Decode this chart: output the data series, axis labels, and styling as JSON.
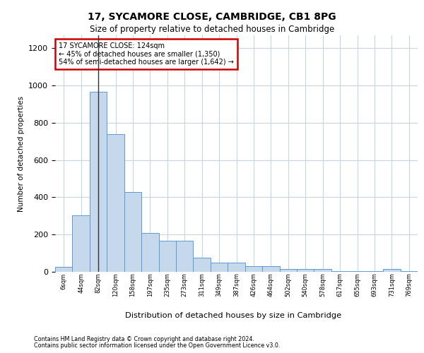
{
  "title_line1": "17, SYCAMORE CLOSE, CAMBRIDGE, CB1 8PG",
  "title_line2": "Size of property relative to detached houses in Cambridge",
  "xlabel": "Distribution of detached houses by size in Cambridge",
  "ylabel": "Number of detached properties",
  "footnote1": "Contains HM Land Registry data © Crown copyright and database right 2024.",
  "footnote2": "Contains public sector information licensed under the Open Government Licence v3.0.",
  "annotation_line1": "17 SYCAMORE CLOSE: 124sqm",
  "annotation_line2": "← 45% of detached houses are smaller (1,350)",
  "annotation_line3": "54% of semi-detached houses are larger (1,642) →",
  "bar_color": "#c5d8ec",
  "bar_edge_color": "#5b9bd5",
  "highlight_line_color": "#333333",
  "annotation_box_edgecolor": "#cc0000",
  "background_color": "#ffffff",
  "grid_color": "#c8d4e0",
  "categories": [
    "6sqm",
    "44sqm",
    "82sqm",
    "120sqm",
    "158sqm",
    "197sqm",
    "235sqm",
    "273sqm",
    "311sqm",
    "349sqm",
    "387sqm",
    "426sqm",
    "464sqm",
    "502sqm",
    "540sqm",
    "578sqm",
    "617sqm",
    "655sqm",
    "693sqm",
    "731sqm",
    "769sqm"
  ],
  "values": [
    25,
    305,
    965,
    740,
    430,
    210,
    165,
    165,
    75,
    48,
    48,
    30,
    30,
    15,
    15,
    15,
    2,
    2,
    2,
    15,
    2
  ],
  "property_bin_index": 2,
  "ylim": [
    0,
    1270
  ],
  "yticks": [
    0,
    200,
    400,
    600,
    800,
    1000,
    1200
  ]
}
